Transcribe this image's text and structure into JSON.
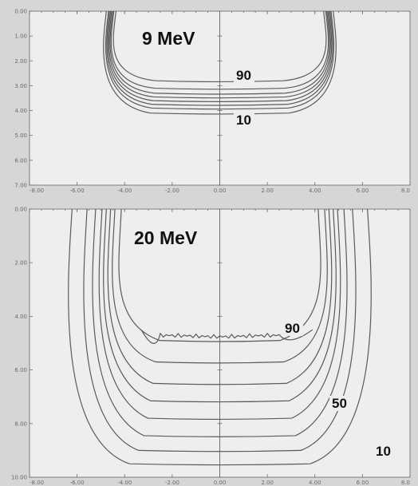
{
  "chart_data": [
    {
      "type": "line",
      "title": "9 MeV",
      "xlabel": "",
      "ylabel": "",
      "xlim": [
        -8,
        8
      ],
      "ylim": [
        0,
        7
      ],
      "y_inverted": true,
      "grid": false,
      "x_ticks": [
        "-8.00",
        "-6.00",
        "-4.00",
        "-2.00",
        "0.00",
        "2.00",
        "4.00",
        "6.00",
        "8.0"
      ],
      "y_ticks": [
        "0.00",
        "1.00",
        "2.00",
        "3.00",
        "4.00",
        "5.00",
        "6.00",
        "7.00"
      ],
      "series": [
        {
          "half_width": 5.3,
          "depth": 4.1,
          "side_y": 1.0,
          "bottom_y": 3.7
        },
        {
          "half_width": 5.2,
          "depth": 3.9,
          "side_y": 1.0,
          "bottom_y": 3.55
        },
        {
          "half_width": 5.15,
          "depth": 3.75,
          "side_y": 1.0,
          "bottom_y": 3.42
        },
        {
          "half_width": 5.1,
          "depth": 3.6,
          "side_y": 1.0,
          "bottom_y": 3.3
        },
        {
          "half_width": 5.05,
          "depth": 3.45,
          "side_y": 1.0,
          "bottom_y": 3.18
        },
        {
          "half_width": 5.0,
          "depth": 3.3,
          "side_y": 1.0,
          "bottom_y": 3.05
        },
        {
          "half_width": 4.95,
          "depth": 3.1,
          "side_y": 1.0,
          "bottom_y": 2.9
        },
        {
          "half_width": 4.85,
          "depth": 2.8,
          "side_y": 1.0,
          "bottom_y": 2.6
        }
      ],
      "annotations": [
        {
          "text": "90",
          "x": 0.9,
          "y": 2.9
        },
        {
          "text": "10",
          "x": 0.9,
          "y": 4.2
        }
      ]
    },
    {
      "type": "line",
      "title": "20 MeV",
      "xlabel": "",
      "ylabel": "",
      "xlim": [
        -8,
        8
      ],
      "ylim": [
        0,
        10
      ],
      "y_inverted": true,
      "grid": false,
      "x_ticks": [
        "-8.00",
        "-6.00",
        "-4.00",
        "-2.00",
        "0.00",
        "2.00",
        "4.00",
        "6.00",
        "8.0"
      ],
      "y_ticks": [
        "0.00",
        "2.00",
        "4.00",
        "6.00",
        "8.00",
        "10.00"
      ],
      "series": [
        {
          "half_width": 6.9,
          "depth": 9.5,
          "side_y": 2.0,
          "bottom_y": 8.5
        },
        {
          "half_width": 6.2,
          "depth": 9.0,
          "side_y": 2.0,
          "bottom_y": 8.0
        },
        {
          "half_width": 5.8,
          "depth": 8.45,
          "side_y": 2.0,
          "bottom_y": 7.3
        },
        {
          "half_width": 5.5,
          "depth": 7.8,
          "side_y": 2.0,
          "bottom_y": 6.7
        },
        {
          "half_width": 5.3,
          "depth": 7.15,
          "side_y": 2.0,
          "bottom_y": 6.1
        },
        {
          "half_width": 5.1,
          "depth": 6.5,
          "side_y": 2.0,
          "bottom_y": 5.6
        },
        {
          "half_width": 4.9,
          "depth": 5.7,
          "side_y": 2.0,
          "bottom_y": 5.0
        },
        {
          "half_width": 4.6,
          "depth": 4.9,
          "side_y": 2.0,
          "bottom_y": 4.2
        },
        {
          "half_width": 2.5,
          "depth": 4.9,
          "side_y": 4.5,
          "bottom_y": 4.85
        }
      ],
      "annotations": [
        {
          "text": "90",
          "x": 2.7,
          "y": 4.5
        },
        {
          "text": "50",
          "x": 5.0,
          "y": 7.9
        },
        {
          "text": "10",
          "x": 6.6,
          "y": 9.1
        }
      ]
    }
  ]
}
